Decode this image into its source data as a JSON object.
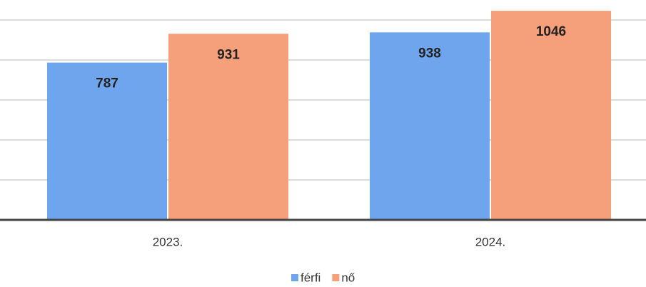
{
  "chart_data": {
    "type": "bar",
    "categories": [
      "2023.",
      "2024."
    ],
    "series": [
      {
        "name": "férfi",
        "color": "#6fa5ec",
        "values": [
          787,
          938
        ]
      },
      {
        "name": "nő",
        "color": "#f5a07b",
        "values": [
          931,
          1046
        ]
      }
    ],
    "ylim": [
      0,
      1100
    ],
    "yticks": [
      0,
      200,
      400,
      600,
      800,
      1000
    ],
    "grid": true,
    "legend": "bottom"
  }
}
